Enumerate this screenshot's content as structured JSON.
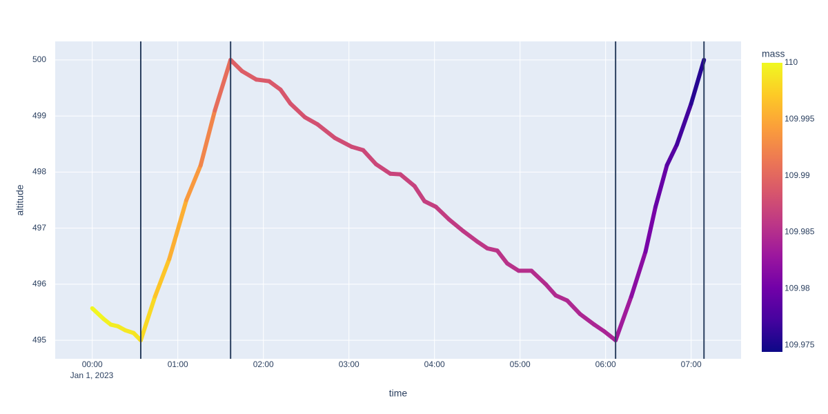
{
  "chart_data": {
    "type": "line",
    "x_label": "time",
    "y_label": "altitude",
    "x": [
      "2023-01-01 00:00",
      "2023-01-01 00:08",
      "2023-01-01 00:13",
      "2023-01-01 00:18",
      "2023-01-01 00:23",
      "2023-01-01 00:29",
      "2023-01-01 00:34",
      "2023-01-01 00:44",
      "2023-01-01 00:54",
      "2023-01-01 01:06",
      "2023-01-01 01:16",
      "2023-01-01 01:26",
      "2023-01-01 01:37",
      "2023-01-01 01:45",
      "2023-01-01 01:55",
      "2023-01-01 02:04",
      "2023-01-01 02:12",
      "2023-01-01 02:19",
      "2023-01-01 02:29",
      "2023-01-01 02:38",
      "2023-01-01 02:50",
      "2023-01-01 03:02",
      "2023-01-01 03:10",
      "2023-01-01 03:19",
      "2023-01-01 03:29",
      "2023-01-01 03:36",
      "2023-01-01 03:46",
      "2023-01-01 03:53",
      "2023-01-01 04:01",
      "2023-01-01 04:10",
      "2023-01-01 04:20",
      "2023-01-01 04:30",
      "2023-01-01 04:37",
      "2023-01-01 04:44",
      "2023-01-01 04:51",
      "2023-01-01 04:59",
      "2023-01-01 05:08",
      "2023-01-01 05:18",
      "2023-01-01 05:25",
      "2023-01-01 05:33",
      "2023-01-01 05:42",
      "2023-01-01 05:52",
      "2023-01-01 05:59",
      "2023-01-01 06:07",
      "2023-01-01 06:18",
      "2023-01-01 06:28",
      "2023-01-01 06:35",
      "2023-01-01 06:43",
      "2023-01-01 06:50",
      "2023-01-01 07:00",
      "2023-01-01 07:09"
    ],
    "series": [
      {
        "values": [
          495.57,
          495.38,
          495.28,
          495.25,
          495.18,
          495.13,
          495.0,
          495.78,
          496.45,
          497.5,
          498.12,
          499.1,
          500.0,
          499.8,
          499.65,
          499.62,
          499.47,
          499.22,
          498.98,
          498.85,
          498.61,
          498.45,
          498.39,
          498.14,
          497.97,
          497.96,
          497.75,
          497.48,
          497.38,
          497.16,
          496.95,
          496.76,
          496.64,
          496.6,
          496.37,
          496.24,
          496.24,
          496.0,
          495.8,
          495.71,
          495.47,
          495.28,
          495.16,
          495.0,
          495.78,
          496.58,
          497.38,
          498.12,
          498.49,
          499.22,
          500.0
        ],
        "color_values": [
          110,
          109.9996,
          109.9994,
          109.9992,
          109.999,
          109.9988,
          109.9986,
          109.9975,
          109.9962,
          109.9945,
          109.9932,
          109.9915,
          109.9895,
          109.9892,
          109.989,
          109.9888,
          109.9886,
          109.9884,
          109.9882,
          109.988,
          109.9878,
          109.9876,
          109.9874,
          109.9872,
          109.987,
          109.9869,
          109.9867,
          109.9866,
          109.9864,
          109.9862,
          109.986,
          109.9858,
          109.9857,
          109.9856,
          109.9854,
          109.9852,
          109.985,
          109.9848,
          109.9847,
          109.9846,
          109.9844,
          109.9842,
          109.9841,
          109.984,
          109.9826,
          109.981,
          109.98,
          109.9788,
          109.9778,
          109.9763,
          109.975
        ]
      }
    ],
    "xlim": [
      "2022-12-31 23:34",
      "2023-01-01 07:35"
    ],
    "xticks": [
      {
        "value": "2023-01-01 00:00",
        "label": "00:00"
      },
      {
        "value": "2023-01-01 01:00",
        "label": "01:00"
      },
      {
        "value": "2023-01-01 02:00",
        "label": "02:00"
      },
      {
        "value": "2023-01-01 03:00",
        "label": "03:00"
      },
      {
        "value": "2023-01-01 04:00",
        "label": "04:00"
      },
      {
        "value": "2023-01-01 05:00",
        "label": "05:00"
      },
      {
        "value": "2023-01-01 06:00",
        "label": "06:00"
      },
      {
        "value": "2023-01-01 07:00",
        "label": "07:00"
      }
    ],
    "x_date_label": "Jan 1, 2023",
    "ylim": [
      494.67,
      500.33
    ],
    "yticks": [
      495,
      496,
      497,
      498,
      499,
      500
    ],
    "grid": true,
    "vlines": [
      "2023-01-01 00:34",
      "2023-01-01 01:37",
      "2023-01-01 06:07",
      "2023-01-01 07:09"
    ],
    "vline_color": "#2a3f5f",
    "colorbar_title": "mass",
    "clim": [
      109.9744,
      110
    ],
    "cticks": [
      109.975,
      109.98,
      109.985,
      109.99,
      109.995,
      110
    ],
    "colorscale": [
      "#0d0887",
      "#46039f",
      "#7201a8",
      "#9c179e",
      "#bd3786",
      "#d8576b",
      "#ed7953",
      "#fb9f3a",
      "#fdca26",
      "#f0f921"
    ]
  }
}
